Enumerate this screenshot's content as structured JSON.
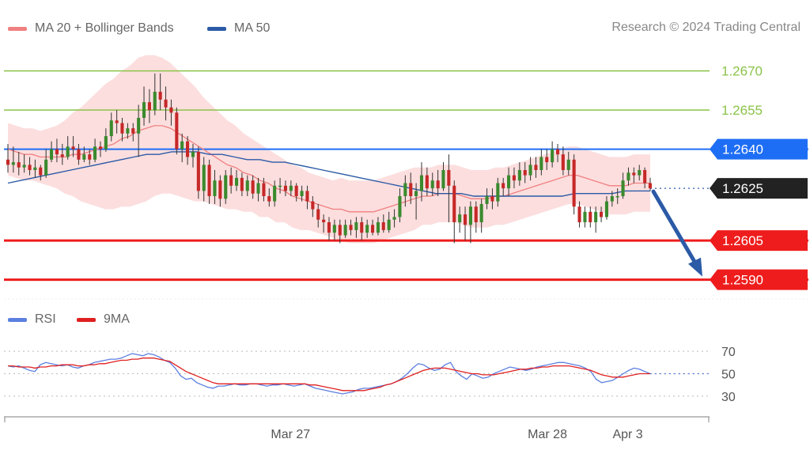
{
  "legend_top": [
    {
      "label": "MA 20 + Bollinger Bands",
      "color": "#f08080"
    },
    {
      "label": "MA 50",
      "color": "#2b5aa6"
    }
  ],
  "copyright": "Research © 2024 Trading Central",
  "legend_bottom": [
    {
      "label": "RSI",
      "color": "#5b7fe0"
    },
    {
      "label": "9MA",
      "color": "#e02020"
    }
  ],
  "chart_data": [
    {
      "type": "candlestick",
      "yrange": [
        1.2582,
        1.2682
      ],
      "levels": [
        {
          "value": 1.267,
          "label": "1.2670",
          "kind": "resistance",
          "color": "#8bc34a"
        },
        {
          "value": 1.2655,
          "label": "1.2655",
          "kind": "resistance",
          "color": "#8bc34a"
        },
        {
          "value": 1.264,
          "label": "1.2640",
          "kind": "pivot",
          "color": "#1e6ef5"
        },
        {
          "value": 1.2625,
          "label": "1.2625",
          "kind": "last_price",
          "color": "#222222"
        },
        {
          "value": 1.2605,
          "label": "1.2605",
          "kind": "support",
          "color": "#ee1c1c"
        },
        {
          "value": 1.259,
          "label": "1.2590",
          "kind": "support",
          "color": "#ee1c1c"
        }
      ],
      "forecast_arrow": {
        "from": 1.2625,
        "to": 1.259,
        "direction": "down",
        "color": "#2b5aa6"
      },
      "candles": [
        [
          1.2636,
          1.2634,
          1.2642,
          1.2631
        ],
        [
          1.2634,
          1.2635,
          1.2641,
          1.2631
        ],
        [
          1.2635,
          1.2633,
          1.2639,
          1.263
        ],
        [
          1.2633,
          1.2634,
          1.2638,
          1.2631
        ],
        [
          1.2634,
          1.2632,
          1.2637,
          1.263
        ],
        [
          1.2632,
          1.2633,
          1.2636,
          1.2629
        ],
        [
          1.2633,
          1.263,
          1.2634,
          1.2628
        ],
        [
          1.263,
          1.2636,
          1.264,
          1.2629
        ],
        [
          1.2636,
          1.264,
          1.2643,
          1.2635
        ],
        [
          1.264,
          1.2638,
          1.2644,
          1.2635
        ],
        [
          1.2638,
          1.2637,
          1.2642,
          1.2634
        ],
        [
          1.2637,
          1.2641,
          1.2645,
          1.2636
        ],
        [
          1.2641,
          1.264,
          1.2645,
          1.2637
        ],
        [
          1.264,
          1.2636,
          1.2642,
          1.2634
        ],
        [
          1.2636,
          1.2638,
          1.2641,
          1.2635
        ],
        [
          1.2638,
          1.2636,
          1.264,
          1.2634
        ],
        [
          1.2636,
          1.2641,
          1.2644,
          1.2635
        ],
        [
          1.2641,
          1.264,
          1.2643,
          1.2637
        ],
        [
          1.264,
          1.2645,
          1.2648,
          1.2639
        ],
        [
          1.2645,
          1.2651,
          1.2654,
          1.2643
        ],
        [
          1.2651,
          1.265,
          1.2655,
          1.2646
        ],
        [
          1.265,
          1.2646,
          1.2652,
          1.2643
        ],
        [
          1.2646,
          1.2648,
          1.265,
          1.2644
        ],
        [
          1.2648,
          1.2646,
          1.265,
          1.2643
        ],
        [
          1.2646,
          1.2652,
          1.2657,
          1.2637
        ],
        [
          1.2652,
          1.2658,
          1.2664,
          1.2649
        ],
        [
          1.2658,
          1.2655,
          1.2663,
          1.265
        ],
        [
          1.2655,
          1.2662,
          1.2669,
          1.2653
        ],
        [
          1.2662,
          1.2659,
          1.2669,
          1.2655
        ],
        [
          1.2659,
          1.2656,
          1.2664,
          1.2651
        ],
        [
          1.2656,
          1.2654,
          1.2659,
          1.2649
        ],
        [
          1.2654,
          1.264,
          1.2656,
          1.2638
        ],
        [
          1.264,
          1.2643,
          1.2646,
          1.2635
        ],
        [
          1.2643,
          1.2637,
          1.2645,
          1.2634
        ],
        [
          1.2637,
          1.2639,
          1.2642,
          1.2633
        ],
        [
          1.2639,
          1.2624,
          1.2641,
          1.2621
        ],
        [
          1.2624,
          1.2634,
          1.2637,
          1.262
        ],
        [
          1.2634,
          1.2622,
          1.2636,
          1.2619
        ],
        [
          1.2622,
          1.2628,
          1.2632,
          1.2619
        ],
        [
          1.2628,
          1.2621,
          1.263,
          1.2618
        ],
        [
          1.2621,
          1.263,
          1.2632,
          1.2619
        ],
        [
          1.263,
          1.2626,
          1.2633,
          1.2623
        ],
        [
          1.2626,
          1.2629,
          1.2632,
          1.2624
        ],
        [
          1.2629,
          1.2624,
          1.2631,
          1.2622
        ],
        [
          1.2624,
          1.2628,
          1.263,
          1.2622
        ],
        [
          1.2628,
          1.2623,
          1.263,
          1.2621
        ],
        [
          1.2623,
          1.2627,
          1.2629,
          1.262
        ],
        [
          1.2627,
          1.2622,
          1.2629,
          1.262
        ],
        [
          1.2622,
          1.262,
          1.2625,
          1.2618
        ],
        [
          1.262,
          1.2626,
          1.2628,
          1.2618
        ],
        [
          1.2626,
          1.2626,
          1.2629,
          1.2623
        ],
        [
          1.2626,
          1.2624,
          1.2628,
          1.2622
        ],
        [
          1.2624,
          1.2626,
          1.2628,
          1.2622
        ],
        [
          1.2626,
          1.2622,
          1.2627,
          1.262
        ],
        [
          1.2622,
          1.2624,
          1.2626,
          1.262
        ],
        [
          1.2624,
          1.262,
          1.2626,
          1.2617
        ],
        [
          1.262,
          1.2617,
          1.2622,
          1.2614
        ],
        [
          1.2617,
          1.2613,
          1.2619,
          1.261
        ],
        [
          1.2613,
          1.2612,
          1.2615,
          1.2608
        ],
        [
          1.2612,
          1.2608,
          1.2614,
          1.2605
        ],
        [
          1.2608,
          1.2611,
          1.2613,
          1.2605
        ],
        [
          1.2611,
          1.2607,
          1.2613,
          1.2604
        ],
        [
          1.2607,
          1.2611,
          1.2613,
          1.2606
        ],
        [
          1.2611,
          1.2609,
          1.2613,
          1.2607
        ],
        [
          1.2609,
          1.2612,
          1.2614,
          1.2606
        ],
        [
          1.2612,
          1.2608,
          1.2614,
          1.2605
        ],
        [
          1.2608,
          1.2611,
          1.2613,
          1.2606
        ],
        [
          1.2611,
          1.2608,
          1.2613,
          1.2607
        ],
        [
          1.2608,
          1.2612,
          1.2614,
          1.2607
        ],
        [
          1.2612,
          1.2609,
          1.2615,
          1.2608
        ],
        [
          1.2609,
          1.2613,
          1.2616,
          1.2608
        ],
        [
          1.2613,
          1.2614,
          1.2617,
          1.261
        ],
        [
          1.2614,
          1.2622,
          1.2625,
          1.2612
        ],
        [
          1.2622,
          1.2627,
          1.263,
          1.2618
        ],
        [
          1.2627,
          1.2622,
          1.2631,
          1.2619
        ],
        [
          1.2622,
          1.2624,
          1.2627,
          1.2613
        ],
        [
          1.2624,
          1.263,
          1.2635,
          1.262
        ],
        [
          1.263,
          1.2625,
          1.2633,
          1.2622
        ],
        [
          1.2625,
          1.2628,
          1.2631,
          1.2622
        ],
        [
          1.2628,
          1.2625,
          1.2632,
          1.2622
        ],
        [
          1.2625,
          1.2632,
          1.2635,
          1.2624
        ],
        [
          1.2632,
          1.2626,
          1.2638,
          1.2612
        ],
        [
          1.2626,
          1.2612,
          1.2628,
          1.2604
        ],
        [
          1.2612,
          1.2615,
          1.2618,
          1.2608
        ],
        [
          1.2615,
          1.2611,
          1.2618,
          1.2605
        ],
        [
          1.2611,
          1.2618,
          1.262,
          1.2604
        ],
        [
          1.2618,
          1.2612,
          1.262,
          1.2608
        ],
        [
          1.2612,
          1.2619,
          1.2621,
          1.2608
        ],
        [
          1.2619,
          1.2622,
          1.2625,
          1.2617
        ],
        [
          1.2622,
          1.262,
          1.2625,
          1.2617
        ],
        [
          1.262,
          1.2627,
          1.2629,
          1.2618
        ],
        [
          1.2627,
          1.2625,
          1.2629,
          1.2622
        ],
        [
          1.2625,
          1.263,
          1.2633,
          1.2622
        ],
        [
          1.263,
          1.2628,
          1.2633,
          1.2625
        ],
        [
          1.2628,
          1.2632,
          1.2635,
          1.2626
        ],
        [
          1.2632,
          1.263,
          1.2635,
          1.2627
        ],
        [
          1.263,
          1.2634,
          1.2637,
          1.2628
        ],
        [
          1.2634,
          1.2632,
          1.2637,
          1.2629
        ],
        [
          1.2632,
          1.2637,
          1.264,
          1.263
        ],
        [
          1.2637,
          1.2635,
          1.264,
          1.2632
        ],
        [
          1.2635,
          1.264,
          1.2643,
          1.2633
        ],
        [
          1.264,
          1.2638,
          1.2642,
          1.2635
        ],
        [
          1.2638,
          1.2632,
          1.2641,
          1.263
        ],
        [
          1.2632,
          1.2636,
          1.2639,
          1.263
        ],
        [
          1.2636,
          1.2618,
          1.2638,
          1.2615
        ],
        [
          1.2618,
          1.2612,
          1.262,
          1.261
        ],
        [
          1.2612,
          1.2616,
          1.2618,
          1.261
        ],
        [
          1.2616,
          1.2612,
          1.2618,
          1.261
        ],
        [
          1.2612,
          1.2616,
          1.2618,
          1.2608
        ],
        [
          1.2616,
          1.2614,
          1.2618,
          1.2612
        ],
        [
          1.2614,
          1.262,
          1.2622,
          1.2613
        ],
        [
          1.262,
          1.2622,
          1.2624,
          1.2618
        ],
        [
          1.2622,
          1.2622,
          1.2625,
          1.2619
        ],
        [
          1.2622,
          1.2628,
          1.2631,
          1.2621
        ],
        [
          1.2628,
          1.2631,
          1.2633,
          1.2626
        ],
        [
          1.2631,
          1.263,
          1.2633,
          1.2627
        ],
        [
          1.263,
          1.2632,
          1.2634,
          1.2628
        ],
        [
          1.2632,
          1.2627,
          1.2633,
          1.2625
        ],
        [
          1.2627,
          1.2625,
          1.2629,
          1.2624
        ]
      ],
      "ma20": [
        1.264,
        1.2639,
        1.2638,
        1.2638,
        1.2637,
        1.2637,
        1.2637,
        1.2637,
        1.2638,
        1.2638,
        1.2639,
        1.264,
        1.2641,
        1.2642,
        1.2644,
        1.2645,
        1.2647,
        1.2648,
        1.2649,
        1.2649,
        1.2648,
        1.2646,
        1.2644,
        1.2642,
        1.264,
        1.2638,
        1.2636,
        1.2634,
        1.2633,
        1.2631,
        1.263,
        1.2628,
        1.2627,
        1.2625,
        1.2624,
        1.2622,
        1.2621,
        1.262,
        1.2619,
        1.2618,
        1.2617,
        1.2617,
        1.2616,
        1.2616,
        1.2616,
        1.2616,
        1.2617,
        1.2618,
        1.2619,
        1.262,
        1.2621,
        1.2622,
        1.2622,
        1.2623,
        1.2623,
        1.2623,
        1.2622,
        1.2621,
        1.2621,
        1.2621,
        1.2622,
        1.2622,
        1.2623,
        1.2624,
        1.2625,
        1.2626,
        1.2627,
        1.2628,
        1.2629,
        1.263,
        1.263,
        1.2629,
        1.2628,
        1.2627,
        1.2626,
        1.2626,
        1.2626,
        1.2627,
        1.2627,
        1.2627
      ],
      "ma50": [
        1.2627,
        1.2628,
        1.2629,
        1.263,
        1.2631,
        1.2632,
        1.2633,
        1.2634,
        1.2635,
        1.2636,
        1.2637,
        1.2638,
        1.2638,
        1.2639,
        1.2639,
        1.2639,
        1.2638,
        1.2638,
        1.2637,
        1.2636,
        1.2636,
        1.2635,
        1.2635,
        1.2634,
        1.2633,
        1.2632,
        1.2631,
        1.263,
        1.2629,
        1.2628,
        1.2627,
        1.2626,
        1.2625,
        1.2624,
        1.2623,
        1.2623,
        1.2623,
        1.2622,
        1.2622,
        1.2622,
        1.2622,
        1.2622,
        1.2622,
        1.2622,
        1.2622,
        1.2623,
        1.2623,
        1.2623,
        1.2623,
        1.2624,
        1.2624,
        1.2624
      ],
      "bb_width": [
        10,
        10,
        10,
        10,
        10,
        11,
        12,
        14,
        16,
        18,
        20,
        22,
        24,
        25,
        26,
        27,
        28,
        28,
        27,
        26,
        25,
        24,
        23,
        22,
        20,
        19,
        18,
        17,
        16,
        15,
        14,
        14,
        13,
        13,
        12,
        12,
        12,
        11,
        11,
        11,
        11,
        12,
        12,
        12,
        12,
        12,
        12,
        12,
        12,
        12,
        12,
        11,
        11,
        11,
        11,
        11,
        11,
        11,
        11,
        11,
        11,
        11,
        11,
        11,
        11,
        11,
        11,
        11,
        11,
        11,
        11,
        11,
        11,
        11,
        11,
        11,
        11,
        11,
        11,
        11
      ]
    },
    {
      "type": "line",
      "yticks": [
        70,
        50,
        30
      ],
      "yrange": [
        20,
        80
      ],
      "series": [
        {
          "name": "RSI",
          "color": "#5b7fe0",
          "values": [
            57,
            56,
            57,
            55,
            53,
            52,
            58,
            60,
            59,
            58,
            57,
            58,
            56,
            55,
            57,
            58,
            60,
            61,
            62,
            63,
            63,
            64,
            66,
            68,
            67,
            66,
            68,
            67,
            65,
            62,
            60,
            55,
            48,
            45,
            46,
            42,
            40,
            38,
            37,
            39,
            39,
            40,
            41,
            40,
            40,
            41,
            41,
            40,
            39,
            40,
            40,
            41,
            40,
            39,
            40,
            41,
            39,
            37,
            36,
            35,
            34,
            33,
            32,
            33,
            34,
            36,
            37,
            37,
            38,
            39,
            40,
            41,
            43,
            46,
            50,
            55,
            59,
            58,
            55,
            53,
            54,
            58,
            60,
            52,
            48,
            45,
            50,
            48,
            46,
            47,
            50,
            52,
            54,
            56,
            55,
            54,
            53,
            54,
            56,
            57,
            58,
            59,
            60,
            60,
            59,
            58,
            57,
            55,
            52,
            45,
            42,
            43,
            44,
            47,
            50,
            53,
            55,
            54,
            52,
            50
          ]
        },
        {
          "name": "9MA",
          "color": "#e02020",
          "values": [
            57,
            57,
            56,
            56,
            56,
            55,
            56,
            56,
            57,
            57,
            58,
            58,
            58,
            57,
            57,
            58,
            58,
            59,
            59,
            60,
            61,
            62,
            62,
            63,
            63,
            64,
            64,
            64,
            63,
            62,
            61,
            58,
            55,
            52,
            50,
            48,
            46,
            44,
            42,
            41,
            41,
            41,
            41,
            41,
            41,
            41,
            41,
            41,
            41,
            41,
            41,
            41,
            41,
            41,
            41,
            41,
            40,
            40,
            39,
            38,
            37,
            36,
            35,
            35,
            35,
            35,
            35,
            36,
            37,
            38,
            40,
            41,
            43,
            45,
            47,
            49,
            51,
            53,
            54,
            55,
            55,
            55,
            54,
            53,
            52,
            51,
            50,
            50,
            49,
            49,
            49,
            50,
            51,
            52,
            53,
            54,
            54,
            55,
            55,
            56,
            56,
            57,
            57,
            57,
            57,
            56,
            55,
            54,
            53,
            51,
            49,
            48,
            47,
            47,
            47,
            48,
            49,
            50,
            50,
            50
          ]
        }
      ]
    }
  ],
  "x_ticks": [
    {
      "label": "Mar 27",
      "pos": 0.44
    },
    {
      "label": "Mar 28",
      "pos": 0.84
    },
    {
      "label": "Apr 3",
      "pos": 0.965
    }
  ]
}
